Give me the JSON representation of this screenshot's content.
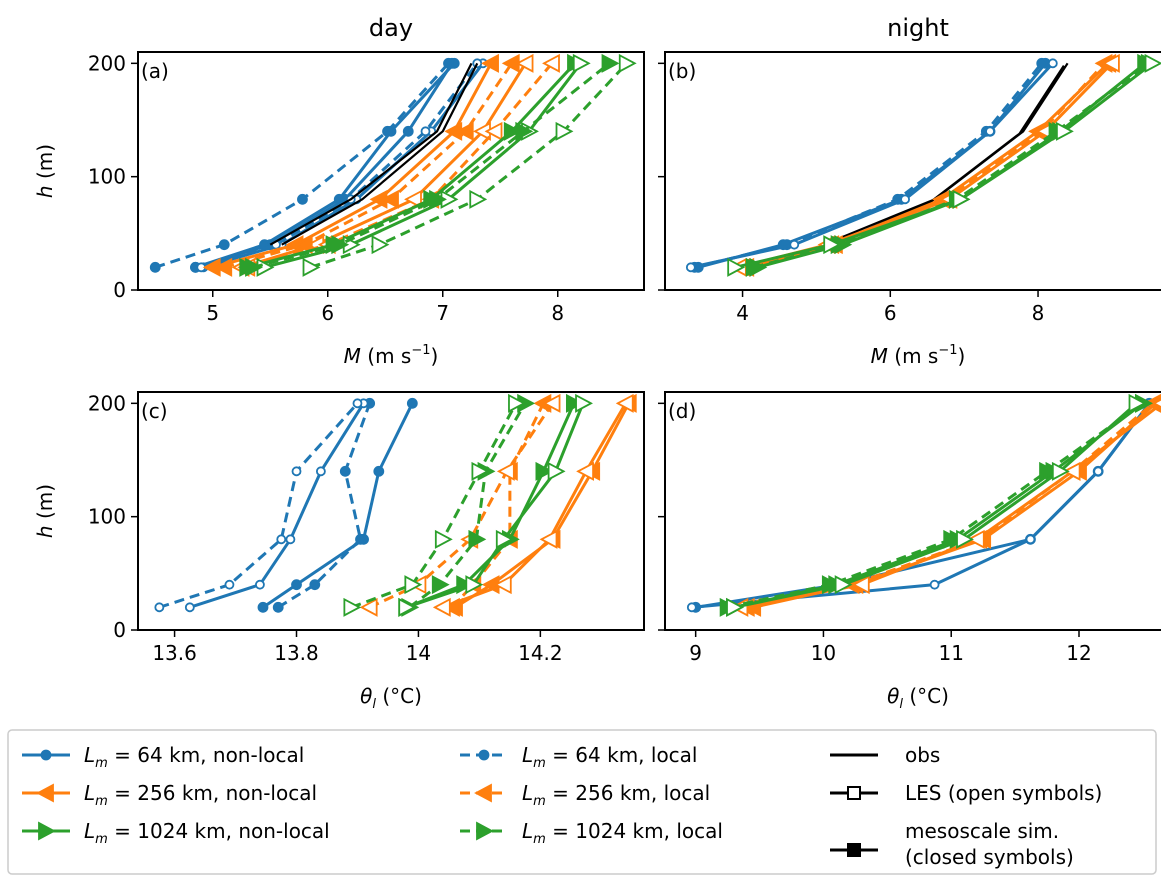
{
  "column_titles": [
    "day",
    "night"
  ],
  "colors": {
    "blue": "#1f77b4",
    "orange": "#ff7f0e",
    "green": "#2ca02c",
    "black": "#000000"
  },
  "legend": {
    "col1": [
      "L_m = 64 km, non-local",
      "L_m = 256 km, non-local",
      "L_m = 1024 km, non-local"
    ],
    "col2": [
      "L_m = 64 km, local",
      "L_m = 256 km, local",
      "L_m = 1024 km, local"
    ],
    "col3": [
      "obs",
      "LES (open symbols)",
      "mesoscale sim.",
      "(closed symbols)"
    ]
  },
  "chart_data": [
    {
      "panel": "(a)",
      "type": "line",
      "xlabel": "M (m s⁻¹)",
      "ylabel": "h (m)",
      "xlim": [
        4.35,
        8.75
      ],
      "ylim": [
        0,
        210
      ],
      "xticks": [
        5,
        6,
        7,
        8
      ],
      "yticks": [
        0,
        100,
        200
      ],
      "series": [
        {
          "color": "blue",
          "style": "solid",
          "marker": "circle",
          "fill": true,
          "x": [
            4.85,
            5.5,
            6.15,
            6.7,
            7.08
          ],
          "y": [
            20,
            40,
            80,
            140,
            200
          ]
        },
        {
          "color": "blue",
          "style": "solid",
          "marker": "circle",
          "fill": true,
          "x": [
            4.85,
            5.45,
            6.1,
            6.55,
            7.1
          ],
          "y": [
            20,
            40,
            80,
            140,
            200
          ]
        },
        {
          "color": "blue",
          "style": "dashed",
          "marker": "circle",
          "fill": true,
          "x": [
            4.5,
            5.1,
            5.78,
            6.52,
            7.05
          ],
          "y": [
            20,
            40,
            80,
            140,
            200
          ]
        },
        {
          "color": "blue",
          "style": "solid",
          "marker": "circle",
          "fill": false,
          "x": [
            4.92,
            5.6,
            6.25,
            6.9,
            7.35
          ],
          "y": [
            20,
            40,
            80,
            140,
            200
          ]
        },
        {
          "color": "blue",
          "style": "dashed",
          "marker": "circle",
          "fill": false,
          "x": [
            4.9,
            5.55,
            6.2,
            6.85,
            7.3
          ],
          "y": [
            20,
            40,
            80,
            140,
            200
          ]
        },
        {
          "color": "black",
          "style": "solid",
          "marker": "none",
          "fill": false,
          "x": [
            5.6,
            6.3,
            7.0,
            7.3
          ],
          "y": [
            40,
            80,
            140,
            200
          ]
        },
        {
          "color": "black",
          "style": "solid",
          "marker": "none",
          "fill": false,
          "x": [
            5.5,
            6.2,
            6.95,
            7.25
          ],
          "y": [
            40,
            80,
            140,
            200
          ]
        },
        {
          "color": "orange",
          "style": "solid",
          "marker": "triangle-left",
          "fill": true,
          "x": [
            5.0,
            5.72,
            6.45,
            7.1,
            7.42
          ],
          "y": [
            20,
            40,
            80,
            140,
            200
          ]
        },
        {
          "color": "orange",
          "style": "solid",
          "marker": "triangle-left",
          "fill": false,
          "x": [
            5.25,
            5.9,
            6.75,
            7.35,
            7.72
          ],
          "y": [
            20,
            40,
            80,
            140,
            200
          ]
        },
        {
          "color": "orange",
          "style": "dashed",
          "marker": "triangle-left",
          "fill": true,
          "x": [
            5.1,
            5.8,
            6.55,
            7.2,
            7.6
          ],
          "y": [
            20,
            40,
            80,
            140,
            200
          ]
        },
        {
          "color": "orange",
          "style": "dashed",
          "marker": "triangle-left",
          "fill": false,
          "x": [
            5.3,
            6.0,
            6.9,
            7.45,
            7.95
          ],
          "y": [
            20,
            40,
            80,
            140,
            200
          ]
        },
        {
          "color": "green",
          "style": "solid",
          "marker": "triangle-right",
          "fill": true,
          "x": [
            5.3,
            6.05,
            6.9,
            7.6,
            8.15
          ],
          "y": [
            20,
            40,
            80,
            140,
            200
          ]
        },
        {
          "color": "green",
          "style": "solid",
          "marker": "triangle-right",
          "fill": false,
          "x": [
            5.45,
            6.2,
            7.05,
            7.75,
            8.2
          ],
          "y": [
            20,
            40,
            80,
            140,
            200
          ]
        },
        {
          "color": "green",
          "style": "dashed",
          "marker": "triangle-right",
          "fill": true,
          "x": [
            5.35,
            6.1,
            6.95,
            7.7,
            8.45
          ],
          "y": [
            20,
            40,
            80,
            140,
            200
          ]
        },
        {
          "color": "green",
          "style": "dashed",
          "marker": "triangle-right",
          "fill": false,
          "x": [
            5.85,
            6.45,
            7.3,
            8.05,
            8.6
          ],
          "y": [
            20,
            40,
            80,
            140,
            200
          ]
        }
      ]
    },
    {
      "panel": "(b)",
      "type": "line",
      "xlabel": "M (m s⁻¹)",
      "ylabel": "",
      "xlim": [
        2.95,
        9.8
      ],
      "ylim": [
        0,
        210
      ],
      "xticks": [
        4,
        6,
        8
      ],
      "yticks": [
        0,
        100,
        200
      ],
      "series": [
        {
          "color": "blue",
          "style": "solid",
          "marker": "circle",
          "fill": true,
          "x": [
            3.4,
            4.55,
            6.15,
            7.35,
            8.1
          ],
          "y": [
            20,
            40,
            80,
            140,
            200
          ]
        },
        {
          "color": "blue",
          "style": "dashed",
          "marker": "circle",
          "fill": true,
          "x": [
            3.35,
            4.6,
            6.1,
            7.3,
            8.05
          ],
          "y": [
            20,
            40,
            80,
            140,
            200
          ]
        },
        {
          "color": "blue",
          "style": "solid",
          "marker": "circle",
          "fill": false,
          "x": [
            3.3,
            4.7,
            6.2,
            7.35,
            8.2
          ],
          "y": [
            20,
            40,
            80,
            140,
            200
          ]
        },
        {
          "color": "black",
          "style": "solid",
          "marker": "none",
          "fill": false,
          "x": [
            5.1,
            6.6,
            7.8,
            8.4
          ],
          "y": [
            40,
            80,
            140,
            200
          ]
        },
        {
          "color": "black",
          "style": "solid",
          "marker": "none",
          "fill": false,
          "x": [
            5.15,
            6.55,
            7.75,
            8.35
          ],
          "y": [
            38,
            78,
            138,
            198
          ]
        },
        {
          "color": "orange",
          "style": "solid",
          "marker": "triangle-left",
          "fill": true,
          "x": [
            4.0,
            5.2,
            6.7,
            8.0,
            8.95
          ],
          "y": [
            20,
            40,
            80,
            140,
            200
          ]
        },
        {
          "color": "orange",
          "style": "dashed",
          "marker": "triangle-left",
          "fill": true,
          "x": [
            4.05,
            5.25,
            6.75,
            8.05,
            8.9
          ],
          "y": [
            20,
            40,
            80,
            140,
            200
          ]
        },
        {
          "color": "orange",
          "style": "solid",
          "marker": "triangle-left",
          "fill": false,
          "x": [
            3.95,
            5.15,
            6.8,
            8.1,
            9.0
          ],
          "y": [
            20,
            40,
            80,
            140,
            200
          ]
        },
        {
          "color": "green",
          "style": "solid",
          "marker": "triangle-right",
          "fill": true,
          "x": [
            4.2,
            5.35,
            6.95,
            8.3,
            9.45
          ],
          "y": [
            20,
            40,
            80,
            140,
            200
          ]
        },
        {
          "color": "green",
          "style": "dashed",
          "marker": "triangle-right",
          "fill": true,
          "x": [
            4.15,
            5.3,
            6.9,
            8.25,
            9.5
          ],
          "y": [
            20,
            40,
            80,
            140,
            200
          ]
        },
        {
          "color": "green",
          "style": "solid",
          "marker": "triangle-right",
          "fill": false,
          "x": [
            3.9,
            5.2,
            6.95,
            8.35,
            9.55
          ],
          "y": [
            20,
            40,
            80,
            140,
            200
          ]
        }
      ]
    },
    {
      "panel": "(c)",
      "type": "line",
      "xlabel": "θ_l (°C)",
      "ylabel": "h (m)",
      "xlim": [
        13.54,
        14.37
      ],
      "ylim": [
        0,
        210
      ],
      "xticks": [
        13.6,
        13.8,
        14.0,
        14.2
      ],
      "yticks": [
        0,
        100,
        200
      ],
      "series": [
        {
          "color": "blue",
          "style": "solid",
          "marker": "circle",
          "fill": true,
          "x": [
            13.745,
            13.8,
            13.91,
            13.935,
            13.99
          ],
          "y": [
            20,
            40,
            80,
            140,
            200
          ]
        },
        {
          "color": "blue",
          "style": "dashed",
          "marker": "circle",
          "fill": true,
          "x": [
            13.77,
            13.83,
            13.905,
            13.88,
            13.92
          ],
          "y": [
            20,
            40,
            80,
            140,
            200
          ]
        },
        {
          "color": "blue",
          "style": "solid",
          "marker": "circle",
          "fill": false,
          "x": [
            13.625,
            13.74,
            13.79,
            13.84,
            13.91
          ],
          "y": [
            20,
            40,
            80,
            140,
            200
          ]
        },
        {
          "color": "blue",
          "style": "dashed",
          "marker": "circle",
          "fill": false,
          "x": [
            13.575,
            13.69,
            13.775,
            13.8,
            13.9
          ],
          "y": [
            20,
            40,
            80,
            140,
            200
          ]
        },
        {
          "color": "orange",
          "style": "solid",
          "marker": "triangle-left",
          "fill": true,
          "x": [
            14.06,
            14.12,
            14.22,
            14.285,
            14.345
          ],
          "y": [
            20,
            40,
            80,
            140,
            200
          ]
        },
        {
          "color": "orange",
          "style": "dashed",
          "marker": "triangle-left",
          "fill": true,
          "x": [
            14.055,
            14.09,
            14.15,
            14.15,
            14.205
          ],
          "y": [
            20,
            40,
            80,
            140,
            200
          ]
        },
        {
          "color": "orange",
          "style": "solid",
          "marker": "triangle-left",
          "fill": false,
          "x": [
            14.04,
            14.14,
            14.215,
            14.275,
            14.34
          ],
          "y": [
            20,
            40,
            80,
            140,
            200
          ]
        },
        {
          "color": "orange",
          "style": "dashed",
          "marker": "triangle-left",
          "fill": false,
          "x": [
            13.92,
            14.0,
            14.085,
            14.145,
            14.22
          ],
          "y": [
            20,
            40,
            80,
            140,
            200
          ]
        },
        {
          "color": "green",
          "style": "solid",
          "marker": "triangle-right",
          "fill": true,
          "x": [
            13.98,
            14.075,
            14.15,
            14.205,
            14.255
          ],
          "y": [
            20,
            40,
            80,
            140,
            200
          ]
        },
        {
          "color": "green",
          "style": "dashed",
          "marker": "triangle-right",
          "fill": true,
          "x": [
            13.985,
            14.035,
            14.095,
            14.11,
            14.175
          ],
          "y": [
            20,
            40,
            80,
            140,
            200
          ]
        },
        {
          "color": "green",
          "style": "solid",
          "marker": "triangle-right",
          "fill": false,
          "x": [
            13.98,
            14.09,
            14.14,
            14.225,
            14.27
          ],
          "y": [
            20,
            40,
            80,
            140,
            200
          ]
        },
        {
          "color": "green",
          "style": "dashed",
          "marker": "triangle-right",
          "fill": false,
          "x": [
            13.89,
            13.99,
            14.04,
            14.1,
            14.16
          ],
          "y": [
            20,
            40,
            80,
            140,
            200
          ]
        }
      ]
    },
    {
      "panel": "(d)",
      "type": "line",
      "xlabel": "θ_l (°C)",
      "ylabel": "",
      "xlim": [
        8.76,
        12.72
      ],
      "ylim": [
        0,
        210
      ],
      "xticks": [
        9,
        10,
        11,
        12
      ],
      "yticks": [
        0,
        100,
        200
      ],
      "series": [
        {
          "color": "blue",
          "style": "solid",
          "marker": "circle",
          "fill": true,
          "x": [
            9.0,
            10.12,
            11.62,
            12.15,
            12.55
          ],
          "y": [
            20,
            40,
            80,
            140,
            200
          ]
        },
        {
          "color": "blue",
          "style": "solid",
          "marker": "circle",
          "fill": false,
          "x": [
            8.97,
            10.87,
            11.62,
            12.15,
            12.55
          ],
          "y": [
            20,
            40,
            80,
            140,
            200
          ]
        },
        {
          "color": "orange",
          "style": "solid",
          "marker": "triangle-left",
          "fill": true,
          "x": [
            9.45,
            10.25,
            11.25,
            12.0,
            12.6
          ],
          "y": [
            20,
            40,
            80,
            140,
            200
          ]
        },
        {
          "color": "orange",
          "style": "dashed",
          "marker": "triangle-left",
          "fill": true,
          "x": [
            9.4,
            10.22,
            11.22,
            11.95,
            12.58
          ],
          "y": [
            20,
            40,
            80,
            140,
            200
          ]
        },
        {
          "color": "orange",
          "style": "solid",
          "marker": "triangle-left",
          "fill": false,
          "x": [
            9.35,
            10.3,
            11.2,
            11.95,
            12.65
          ],
          "y": [
            20,
            40,
            80,
            140,
            200
          ]
        },
        {
          "color": "green",
          "style": "solid",
          "marker": "triangle-right",
          "fill": true,
          "x": [
            9.3,
            10.1,
            11.05,
            11.8,
            12.5
          ],
          "y": [
            20,
            40,
            80,
            140,
            200
          ]
        },
        {
          "color": "green",
          "style": "dashed",
          "marker": "triangle-right",
          "fill": true,
          "x": [
            9.25,
            10.05,
            11.0,
            11.75,
            12.5
          ],
          "y": [
            20,
            40,
            80,
            140,
            200
          ]
        },
        {
          "color": "green",
          "style": "solid",
          "marker": "triangle-right",
          "fill": false,
          "x": [
            9.3,
            10.15,
            11.1,
            11.85,
            12.45
          ],
          "y": [
            20,
            40,
            80,
            140,
            200
          ]
        }
      ]
    }
  ]
}
